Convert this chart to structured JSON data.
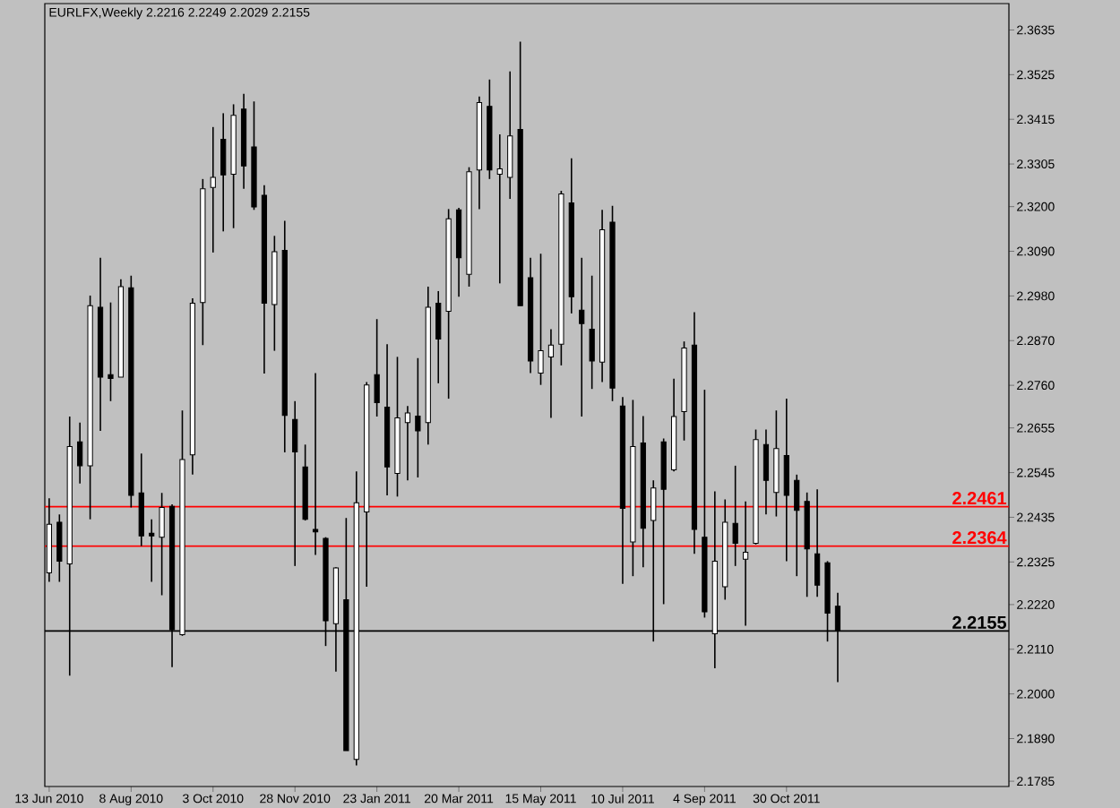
{
  "chart_data": {
    "type": "candlestick",
    "title": "EURLFX,Weekly  2.2216 2.2249 2.2029 2.2155",
    "x": [
      "2010-06-13",
      "2010-06-20",
      "2010-06-27",
      "2010-07-04",
      "2010-07-11",
      "2010-07-18",
      "2010-07-25",
      "2010-08-01",
      "2010-08-08",
      "2010-08-15",
      "2010-08-22",
      "2010-08-29",
      "2010-09-05",
      "2010-09-12",
      "2010-09-19",
      "2010-09-26",
      "2010-10-03",
      "2010-10-10",
      "2010-10-17",
      "2010-10-24",
      "2010-10-31",
      "2010-11-07",
      "2010-11-14",
      "2010-11-21",
      "2010-11-28",
      "2010-12-05",
      "2010-12-12",
      "2010-12-19",
      "2010-12-26",
      "2011-01-02",
      "2011-01-09",
      "2011-01-16",
      "2011-01-23",
      "2011-01-30",
      "2011-02-06",
      "2011-02-13",
      "2011-02-20",
      "2011-02-27",
      "2011-03-06",
      "2011-03-13",
      "2011-03-20",
      "2011-03-27",
      "2011-04-03",
      "2011-04-10",
      "2011-04-17",
      "2011-04-24",
      "2011-05-01",
      "2011-05-08",
      "2011-05-15",
      "2011-05-22",
      "2011-05-29",
      "2011-06-05",
      "2011-06-12",
      "2011-06-19",
      "2011-06-26",
      "2011-07-03",
      "2011-07-10",
      "2011-07-17",
      "2011-07-24",
      "2011-07-31",
      "2011-08-07",
      "2011-08-14",
      "2011-08-21",
      "2011-08-28",
      "2011-09-04",
      "2011-09-11",
      "2011-09-18",
      "2011-09-25",
      "2011-10-02",
      "2011-10-09",
      "2011-10-16",
      "2011-10-23",
      "2011-10-30",
      "2011-11-06",
      "2011-11-13",
      "2011-11-20",
      "2011-11-27",
      "2011-12-04"
    ],
    "ohlc": [
      [
        2.2298,
        2.2482,
        2.2276,
        2.2418
      ],
      [
        2.2423,
        2.2442,
        2.2276,
        2.2327
      ],
      [
        2.232,
        2.2683,
        2.2045,
        2.2609
      ],
      [
        2.2621,
        2.2668,
        2.2518,
        2.2562
      ],
      [
        2.2562,
        2.2981,
        2.243,
        2.2956
      ],
      [
        2.2952,
        2.3074,
        2.2648,
        2.278
      ],
      [
        2.2786,
        2.2964,
        2.2721,
        2.2777
      ],
      [
        2.278,
        2.3021,
        2.278,
        2.3003
      ],
      [
        2.3,
        2.303,
        2.2459,
        2.2489
      ],
      [
        2.2495,
        2.2592,
        2.2364,
        2.2389
      ],
      [
        2.2396,
        2.243,
        2.2276,
        2.2389
      ],
      [
        2.2386,
        2.2495,
        2.2243,
        2.2459
      ],
      [
        2.2462,
        2.2467,
        2.2066,
        2.2158
      ],
      [
        2.2146,
        2.2698,
        2.2143,
        2.2577
      ],
      [
        2.2589,
        2.2974,
        2.254,
        2.2962
      ],
      [
        2.2964,
        2.3268,
        2.2859,
        2.3244
      ],
      [
        2.3247,
        2.3396,
        2.3087,
        2.3272
      ],
      [
        2.3366,
        2.343,
        2.3139,
        2.3278
      ],
      [
        2.328,
        2.3452,
        2.3147,
        2.3425
      ],
      [
        2.344,
        2.3478,
        2.3244,
        2.33
      ],
      [
        2.3347,
        2.3459,
        2.3192,
        2.3199
      ],
      [
        2.3228,
        2.3253,
        2.2789,
        2.2962
      ],
      [
        2.2959,
        2.3128,
        2.2845,
        2.3089
      ],
      [
        2.3092,
        2.3165,
        2.2595,
        2.2686
      ],
      [
        2.2676,
        2.2721,
        2.2315,
        2.2596
      ],
      [
        2.2559,
        2.2614,
        2.2427,
        2.243
      ],
      [
        2.2405,
        2.279,
        2.2342,
        2.2399
      ],
      [
        2.2383,
        2.2386,
        2.2118,
        2.218
      ],
      [
        2.2173,
        2.2312,
        2.2055,
        2.231
      ],
      [
        2.2232,
        2.2433,
        2.186,
        2.186
      ],
      [
        2.1839,
        2.2548,
        2.1824,
        2.2471
      ],
      [
        2.2448,
        2.2768,
        2.2264,
        2.2761
      ],
      [
        2.2786,
        2.2923,
        2.2683,
        2.2717
      ],
      [
        2.2706,
        2.2861,
        2.2489,
        2.2559
      ],
      [
        2.2543,
        2.283,
        2.2486,
        2.268
      ],
      [
        2.2668,
        2.2709,
        2.2526,
        2.2692
      ],
      [
        2.2684,
        2.2827,
        2.2533,
        2.2648
      ],
      [
        2.2668,
        2.3003,
        2.2614,
        2.2952
      ],
      [
        2.2962,
        2.2992,
        2.2765,
        2.2874
      ],
      [
        2.2942,
        2.3194,
        2.2727,
        2.317
      ],
      [
        2.3192,
        2.3197,
        2.2978,
        2.3074
      ],
      [
        2.3033,
        2.3297,
        2.3003,
        2.3286
      ],
      [
        2.329,
        2.3471,
        2.3194,
        2.3456
      ],
      [
        2.3447,
        2.3513,
        2.3268,
        2.329
      ],
      [
        2.328,
        2.3378,
        2.3011,
        2.3293
      ],
      [
        2.3272,
        2.3533,
        2.3219,
        2.3374
      ],
      [
        2.339,
        2.3606,
        2.2956,
        2.2956
      ],
      [
        2.3025,
        2.3074,
        2.279,
        2.282
      ],
      [
        2.279,
        2.3084,
        2.2761,
        2.2845
      ],
      [
        2.283,
        2.2898,
        2.268,
        2.2859
      ],
      [
        2.2861,
        2.3239,
        2.2809,
        2.3231
      ],
      [
        2.3209,
        2.3319,
        2.2937,
        2.2978
      ],
      [
        2.2945,
        2.3074,
        2.2683,
        2.2912
      ],
      [
        2.2898,
        2.303,
        2.2751,
        2.282
      ],
      [
        2.2817,
        2.3192,
        2.2768,
        2.3143
      ],
      [
        2.3162,
        2.3202,
        2.2721,
        2.2753
      ],
      [
        2.2709,
        2.2731,
        2.2271,
        2.2457
      ],
      [
        2.2374,
        2.2724,
        2.229,
        2.2609
      ],
      [
        2.2618,
        2.2684,
        2.2312,
        2.2408
      ],
      [
        2.2427,
        2.2526,
        2.2129,
        2.2507
      ],
      [
        2.2621,
        2.2629,
        2.2221,
        2.2504
      ],
      [
        2.2552,
        2.2776,
        2.2548,
        2.2683
      ],
      [
        2.2695,
        2.2868,
        2.2624,
        2.2852
      ],
      [
        2.2859,
        2.294,
        2.2345,
        2.2405
      ],
      [
        2.2386,
        2.2749,
        2.2188,
        2.2202
      ],
      [
        2.2148,
        2.2499,
        2.2063,
        2.2327
      ],
      [
        2.2264,
        2.2479,
        2.2232,
        2.2423
      ],
      [
        2.242,
        2.2562,
        2.2315,
        2.2371
      ],
      [
        2.2332,
        2.2474,
        2.2168,
        2.2349
      ],
      [
        2.2371,
        2.2651,
        2.2368,
        2.2626
      ],
      [
        2.2614,
        2.2651,
        2.2442,
        2.2526
      ],
      [
        2.2496,
        2.2698,
        2.2437,
        2.2604
      ],
      [
        2.2587,
        2.2727,
        2.2327,
        2.2489
      ],
      [
        2.2526,
        2.254,
        2.229,
        2.2452
      ],
      [
        2.2474,
        2.2496,
        2.2239,
        2.2357
      ],
      [
        2.2345,
        2.2504,
        2.2239,
        2.2268
      ],
      [
        2.2323,
        2.2327,
        2.2129,
        2.2199
      ],
      [
        2.2216,
        2.2249,
        2.2029,
        2.2155
      ]
    ],
    "xlim": [
      "2010-06-10",
      "2012-03-30"
    ],
    "xticks": [
      {
        "value": "2010-06-13",
        "label": "13 Jun 2010"
      },
      {
        "value": "2010-08-08",
        "label": "8 Aug 2010"
      },
      {
        "value": "2010-10-03",
        "label": "3 Oct 2010"
      },
      {
        "value": "2010-11-28",
        "label": "28 Nov 2010"
      },
      {
        "value": "2011-01-23",
        "label": "23 Jan 2011"
      },
      {
        "value": "2011-03-20",
        "label": "20 Mar 2011"
      },
      {
        "value": "2011-05-15",
        "label": "15 May 2011"
      },
      {
        "value": "2011-07-10",
        "label": "10 Jul 2011"
      },
      {
        "value": "2011-09-04",
        "label": "4 Sep 2011"
      },
      {
        "value": "2011-10-30",
        "label": "30 Oct 2011"
      }
    ],
    "ylim": [
      2.1772,
      2.37
    ],
    "yticks": [
      2.3635,
      2.3525,
      2.3415,
      2.3305,
      {
        "value": 2.32,
        "label": "2.3200"
      },
      {
        "value": 2.309,
        "label": "2.3090"
      },
      {
        "value": 2.298,
        "label": "2.2980"
      },
      {
        "value": 2.287,
        "label": "2.2870"
      },
      {
        "value": 2.276,
        "label": "2.2760"
      },
      2.2655,
      2.2545,
      2.2435,
      2.2325,
      {
        "value": 2.222,
        "label": "2.2220"
      },
      {
        "value": 2.211,
        "label": "2.2110"
      },
      {
        "value": 2.2,
        "label": "2.2000"
      },
      {
        "value": 2.189,
        "label": "2.1890"
      },
      2.1785
    ],
    "ref_lines": [
      {
        "axis": "y",
        "value": 2.2461,
        "label": "2.2461",
        "color": "#ff0000"
      },
      {
        "axis": "y",
        "value": 2.2364,
        "label": "2.2364",
        "color": "#ff0000"
      },
      {
        "axis": "y",
        "value": 2.2155,
        "label": "2.2155",
        "color": "#000000"
      }
    ]
  }
}
